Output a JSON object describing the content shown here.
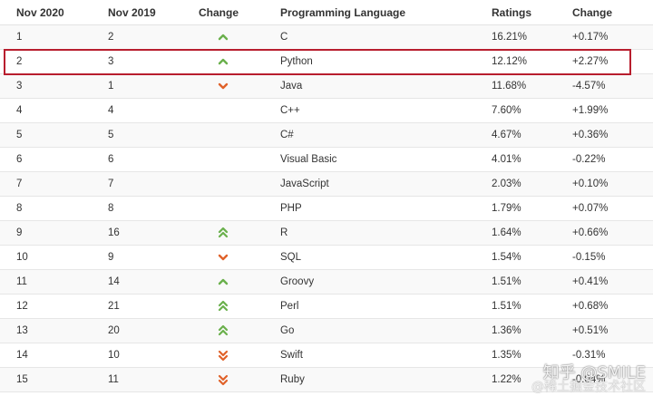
{
  "table": {
    "headers": [
      "Nov 2020",
      "Nov 2019",
      "Change",
      "Programming Language",
      "Ratings",
      "Change"
    ],
    "rows": [
      {
        "nov2020": "1",
        "nov2019": "2",
        "change_icon": "up",
        "language": "C",
        "rating": "16.21%",
        "change": "+0.17%"
      },
      {
        "nov2020": "2",
        "nov2019": "3",
        "change_icon": "up",
        "language": "Python",
        "rating": "12.12%",
        "change": "+2.27%"
      },
      {
        "nov2020": "3",
        "nov2019": "1",
        "change_icon": "down",
        "language": "Java",
        "rating": "11.68%",
        "change": "-4.57%"
      },
      {
        "nov2020": "4",
        "nov2019": "4",
        "change_icon": "none",
        "language": "C++",
        "rating": "7.60%",
        "change": "+1.99%"
      },
      {
        "nov2020": "5",
        "nov2019": "5",
        "change_icon": "none",
        "language": "C#",
        "rating": "4.67%",
        "change": "+0.36%"
      },
      {
        "nov2020": "6",
        "nov2019": "6",
        "change_icon": "none",
        "language": "Visual Basic",
        "rating": "4.01%",
        "change": "-0.22%"
      },
      {
        "nov2020": "7",
        "nov2019": "7",
        "change_icon": "none",
        "language": "JavaScript",
        "rating": "2.03%",
        "change": "+0.10%"
      },
      {
        "nov2020": "8",
        "nov2019": "8",
        "change_icon": "none",
        "language": "PHP",
        "rating": "1.79%",
        "change": "+0.07%"
      },
      {
        "nov2020": "9",
        "nov2019": "16",
        "change_icon": "double-up",
        "language": "R",
        "rating": "1.64%",
        "change": "+0.66%"
      },
      {
        "nov2020": "10",
        "nov2019": "9",
        "change_icon": "down",
        "language": "SQL",
        "rating": "1.54%",
        "change": "-0.15%"
      },
      {
        "nov2020": "11",
        "nov2019": "14",
        "change_icon": "up",
        "language": "Groovy",
        "rating": "1.51%",
        "change": "+0.41%"
      },
      {
        "nov2020": "12",
        "nov2019": "21",
        "change_icon": "double-up",
        "language": "Perl",
        "rating": "1.51%",
        "change": "+0.68%"
      },
      {
        "nov2020": "13",
        "nov2019": "20",
        "change_icon": "double-up",
        "language": "Go",
        "rating": "1.36%",
        "change": "+0.51%"
      },
      {
        "nov2020": "14",
        "nov2019": "10",
        "change_icon": "double-down",
        "language": "Swift",
        "rating": "1.35%",
        "change": "-0.31%"
      },
      {
        "nov2020": "15",
        "nov2019": "11",
        "change_icon": "double-down",
        "language": "Ruby",
        "rating": "1.22%",
        "change": "-0.04%"
      }
    ],
    "highlighted_row": "Python"
  },
  "colors": {
    "up_arrow": "#6ab04c",
    "down_arrow": "#e0622a",
    "highlight_border": "#b81e2e"
  },
  "watermark": {
    "line1": "知乎 @SMILE",
    "line2": "@稀土掘金技术社区"
  }
}
